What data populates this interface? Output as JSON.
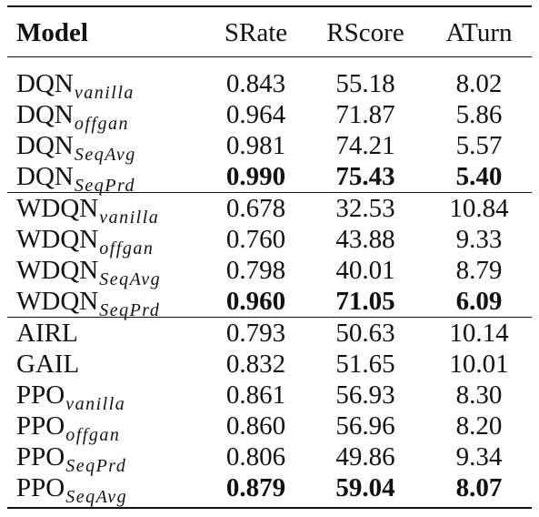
{
  "table": {
    "headers": {
      "model": "Model",
      "srate": "SRate",
      "rscore": "RScore",
      "aturn": "ATurn"
    },
    "groups": [
      {
        "rows": [
          {
            "base": "DQN",
            "sub": "vanilla",
            "srate": "0.843",
            "rscore": "55.18",
            "aturn": "8.02",
            "bold": false
          },
          {
            "base": "DQN",
            "sub": "offgan",
            "srate": "0.964",
            "rscore": "71.87",
            "aturn": "5.86",
            "bold": false
          },
          {
            "base": "DQN",
            "sub": "SeqAvg",
            "srate": "0.981",
            "rscore": "74.21",
            "aturn": "5.57",
            "bold": false
          },
          {
            "base": "DQN",
            "sub": "SeqPrd",
            "srate": "0.990",
            "rscore": "75.43",
            "aturn": "5.40",
            "bold": true
          }
        ]
      },
      {
        "rows": [
          {
            "base": "WDQN",
            "sub": "vanilla",
            "srate": "0.678",
            "rscore": "32.53",
            "aturn": "10.84",
            "bold": false
          },
          {
            "base": "WDQN",
            "sub": "offgan",
            "srate": "0.760",
            "rscore": "43.88",
            "aturn": "9.33",
            "bold": false
          },
          {
            "base": "WDQN",
            "sub": "SeqAvg",
            "srate": "0.798",
            "rscore": "40.01",
            "aturn": "8.79",
            "bold": false
          },
          {
            "base": "WDQN",
            "sub": "SeqPrd",
            "srate": "0.960",
            "rscore": "71.05",
            "aturn": "6.09",
            "bold": true
          }
        ]
      },
      {
        "rows": [
          {
            "base": "AIRL",
            "sub": "",
            "srate": "0.793",
            "rscore": "50.63",
            "aturn": "10.14",
            "bold": false
          },
          {
            "base": "GAIL",
            "sub": "",
            "srate": "0.832",
            "rscore": "51.65",
            "aturn": "10.01",
            "bold": false
          },
          {
            "base": "PPO",
            "sub": "vanilla",
            "srate": "0.861",
            "rscore": "56.93",
            "aturn": "8.30",
            "bold": false
          },
          {
            "base": "PPO",
            "sub": "offgan",
            "srate": "0.860",
            "rscore": "56.96",
            "aturn": "8.20",
            "bold": false
          },
          {
            "base": "PPO",
            "sub": "SeqPrd",
            "srate": "0.806",
            "rscore": "49.86",
            "aturn": "9.34",
            "bold": false
          },
          {
            "base": "PPO",
            "sub": "SeqAvg",
            "srate": "0.879",
            "rscore": "59.04",
            "aturn": "8.07",
            "bold": true
          }
        ]
      }
    ]
  }
}
